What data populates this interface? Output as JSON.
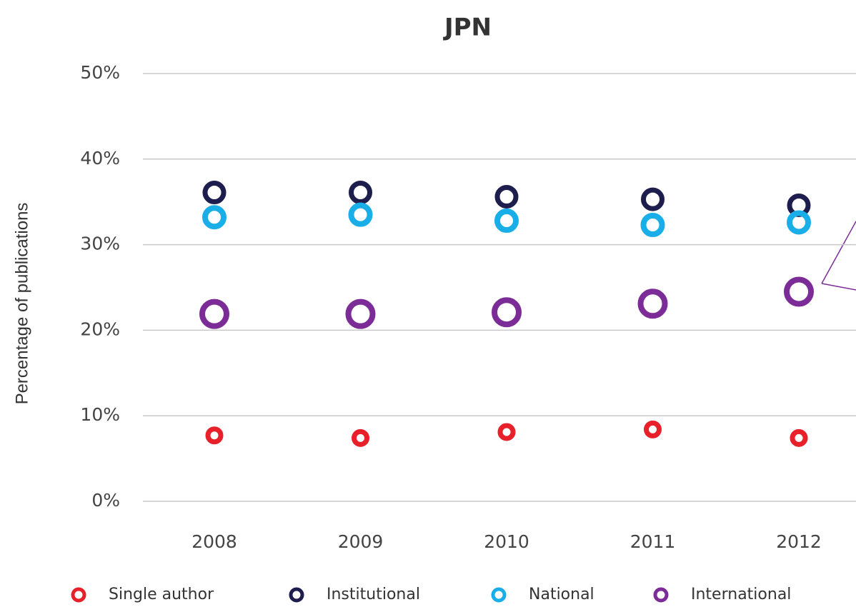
{
  "chart_data": {
    "type": "scatter",
    "title": "JPN",
    "y_label": "Percentage of publications",
    "categories": [
      "2008",
      "2009",
      "2010",
      "2011",
      "2012"
    ],
    "series": [
      {
        "name": "Single author",
        "color": "#e8202a",
        "values": [
          7.7,
          7.4,
          8.1,
          8.4,
          7.4
        ]
      },
      {
        "name": "Institutional",
        "color": "#1e1e4e",
        "values": [
          36.1,
          36.1,
          35.6,
          35.3,
          34.6
        ]
      },
      {
        "name": "National",
        "color": "#1aaee8",
        "values": [
          33.2,
          33.5,
          32.8,
          32.3,
          32.6
        ]
      },
      {
        "name": "International",
        "color": "#7b2c96",
        "values": [
          21.9,
          21.9,
          22.1,
          23.1,
          24.5
        ]
      }
    ],
    "ylim": [
      0,
      50
    ],
    "yticks": [
      {
        "value": 0,
        "label": "0%"
      },
      {
        "value": 10,
        "label": "10%"
      },
      {
        "value": 20,
        "label": "20%"
      },
      {
        "value": 30,
        "label": "30%"
      },
      {
        "value": 40,
        "label": "40%"
      },
      {
        "value": 50,
        "label": "50%"
      }
    ],
    "grid": true
  }
}
